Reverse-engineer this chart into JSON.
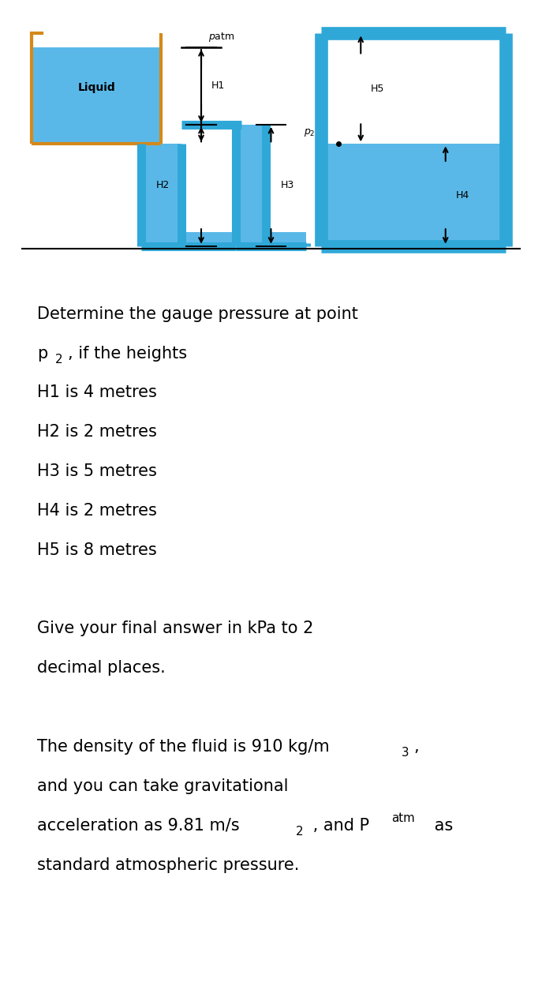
{
  "bg_color": "#ffffff",
  "liquid_fill_color": "#5ab8e8",
  "liquid_border_color": "#d4891a",
  "pipe_border_color": "#2fa8d8",
  "pipe_lw": 8.0,
  "tank_lw": 3.0,
  "diagram": {
    "liquid_label": "Liquid",
    "patm_label": "Patm",
    "h1_label": "H1",
    "h2_label": "H2",
    "h3_label": "H3",
    "h4_label": "H4",
    "h5_label": "H5",
    "p2_label": "p2"
  }
}
